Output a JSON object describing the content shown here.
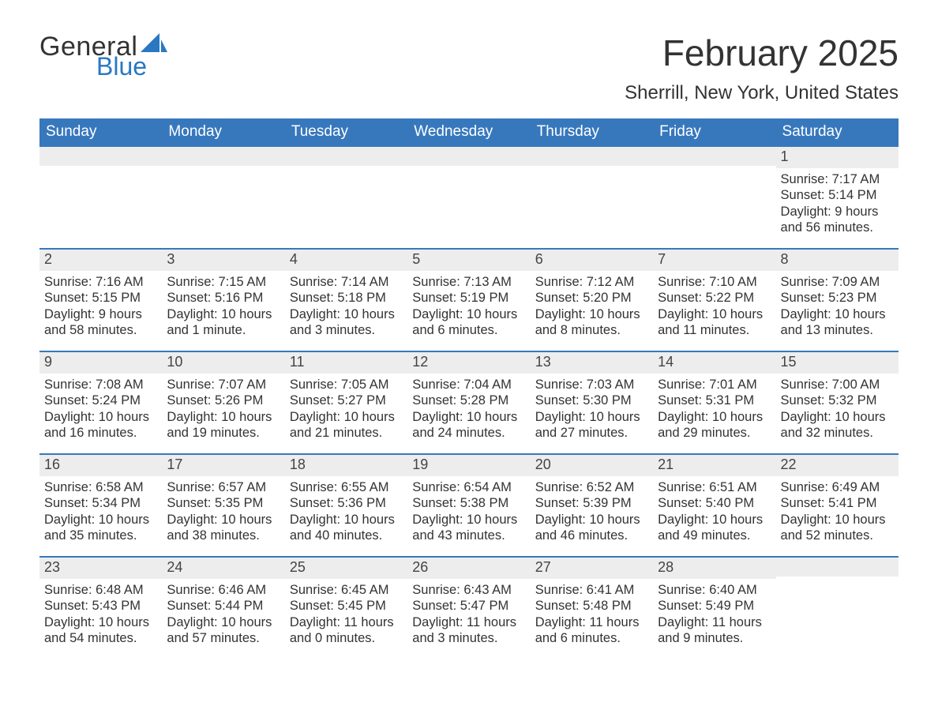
{
  "brand": {
    "word1": "General",
    "word2": "Blue",
    "text_color": "#333333",
    "accent_color": "#2a78c2"
  },
  "header": {
    "month_title": "February 2025",
    "location": "Sherrill, New York, United States"
  },
  "calendar": {
    "header_bg": "#3778bd",
    "header_text_color": "#ffffff",
    "row_separator_color": "#3778bd",
    "daynum_bg": "#ededed",
    "page_bg": "#ffffff",
    "body_text_color": "#333333",
    "days_of_week": [
      "Sunday",
      "Monday",
      "Tuesday",
      "Wednesday",
      "Thursday",
      "Friday",
      "Saturday"
    ],
    "weeks": [
      [
        null,
        null,
        null,
        null,
        null,
        null,
        {
          "n": "1",
          "sunrise": "Sunrise: 7:17 AM",
          "sunset": "Sunset: 5:14 PM",
          "daylight": "Daylight: 9 hours and 56 minutes."
        }
      ],
      [
        {
          "n": "2",
          "sunrise": "Sunrise: 7:16 AM",
          "sunset": "Sunset: 5:15 PM",
          "daylight": "Daylight: 9 hours and 58 minutes."
        },
        {
          "n": "3",
          "sunrise": "Sunrise: 7:15 AM",
          "sunset": "Sunset: 5:16 PM",
          "daylight": "Daylight: 10 hours and 1 minute."
        },
        {
          "n": "4",
          "sunrise": "Sunrise: 7:14 AM",
          "sunset": "Sunset: 5:18 PM",
          "daylight": "Daylight: 10 hours and 3 minutes."
        },
        {
          "n": "5",
          "sunrise": "Sunrise: 7:13 AM",
          "sunset": "Sunset: 5:19 PM",
          "daylight": "Daylight: 10 hours and 6 minutes."
        },
        {
          "n": "6",
          "sunrise": "Sunrise: 7:12 AM",
          "sunset": "Sunset: 5:20 PM",
          "daylight": "Daylight: 10 hours and 8 minutes."
        },
        {
          "n": "7",
          "sunrise": "Sunrise: 7:10 AM",
          "sunset": "Sunset: 5:22 PM",
          "daylight": "Daylight: 10 hours and 11 minutes."
        },
        {
          "n": "8",
          "sunrise": "Sunrise: 7:09 AM",
          "sunset": "Sunset: 5:23 PM",
          "daylight": "Daylight: 10 hours and 13 minutes."
        }
      ],
      [
        {
          "n": "9",
          "sunrise": "Sunrise: 7:08 AM",
          "sunset": "Sunset: 5:24 PM",
          "daylight": "Daylight: 10 hours and 16 minutes."
        },
        {
          "n": "10",
          "sunrise": "Sunrise: 7:07 AM",
          "sunset": "Sunset: 5:26 PM",
          "daylight": "Daylight: 10 hours and 19 minutes."
        },
        {
          "n": "11",
          "sunrise": "Sunrise: 7:05 AM",
          "sunset": "Sunset: 5:27 PM",
          "daylight": "Daylight: 10 hours and 21 minutes."
        },
        {
          "n": "12",
          "sunrise": "Sunrise: 7:04 AM",
          "sunset": "Sunset: 5:28 PM",
          "daylight": "Daylight: 10 hours and 24 minutes."
        },
        {
          "n": "13",
          "sunrise": "Sunrise: 7:03 AM",
          "sunset": "Sunset: 5:30 PM",
          "daylight": "Daylight: 10 hours and 27 minutes."
        },
        {
          "n": "14",
          "sunrise": "Sunrise: 7:01 AM",
          "sunset": "Sunset: 5:31 PM",
          "daylight": "Daylight: 10 hours and 29 minutes."
        },
        {
          "n": "15",
          "sunrise": "Sunrise: 7:00 AM",
          "sunset": "Sunset: 5:32 PM",
          "daylight": "Daylight: 10 hours and 32 minutes."
        }
      ],
      [
        {
          "n": "16",
          "sunrise": "Sunrise: 6:58 AM",
          "sunset": "Sunset: 5:34 PM",
          "daylight": "Daylight: 10 hours and 35 minutes."
        },
        {
          "n": "17",
          "sunrise": "Sunrise: 6:57 AM",
          "sunset": "Sunset: 5:35 PM",
          "daylight": "Daylight: 10 hours and 38 minutes."
        },
        {
          "n": "18",
          "sunrise": "Sunrise: 6:55 AM",
          "sunset": "Sunset: 5:36 PM",
          "daylight": "Daylight: 10 hours and 40 minutes."
        },
        {
          "n": "19",
          "sunrise": "Sunrise: 6:54 AM",
          "sunset": "Sunset: 5:38 PM",
          "daylight": "Daylight: 10 hours and 43 minutes."
        },
        {
          "n": "20",
          "sunrise": "Sunrise: 6:52 AM",
          "sunset": "Sunset: 5:39 PM",
          "daylight": "Daylight: 10 hours and 46 minutes."
        },
        {
          "n": "21",
          "sunrise": "Sunrise: 6:51 AM",
          "sunset": "Sunset: 5:40 PM",
          "daylight": "Daylight: 10 hours and 49 minutes."
        },
        {
          "n": "22",
          "sunrise": "Sunrise: 6:49 AM",
          "sunset": "Sunset: 5:41 PM",
          "daylight": "Daylight: 10 hours and 52 minutes."
        }
      ],
      [
        {
          "n": "23",
          "sunrise": "Sunrise: 6:48 AM",
          "sunset": "Sunset: 5:43 PM",
          "daylight": "Daylight: 10 hours and 54 minutes."
        },
        {
          "n": "24",
          "sunrise": "Sunrise: 6:46 AM",
          "sunset": "Sunset: 5:44 PM",
          "daylight": "Daylight: 10 hours and 57 minutes."
        },
        {
          "n": "25",
          "sunrise": "Sunrise: 6:45 AM",
          "sunset": "Sunset: 5:45 PM",
          "daylight": "Daylight: 11 hours and 0 minutes."
        },
        {
          "n": "26",
          "sunrise": "Sunrise: 6:43 AM",
          "sunset": "Sunset: 5:47 PM",
          "daylight": "Daylight: 11 hours and 3 minutes."
        },
        {
          "n": "27",
          "sunrise": "Sunrise: 6:41 AM",
          "sunset": "Sunset: 5:48 PM",
          "daylight": "Daylight: 11 hours and 6 minutes."
        },
        {
          "n": "28",
          "sunrise": "Sunrise: 6:40 AM",
          "sunset": "Sunset: 5:49 PM",
          "daylight": "Daylight: 11 hours and 9 minutes."
        },
        null
      ]
    ]
  }
}
